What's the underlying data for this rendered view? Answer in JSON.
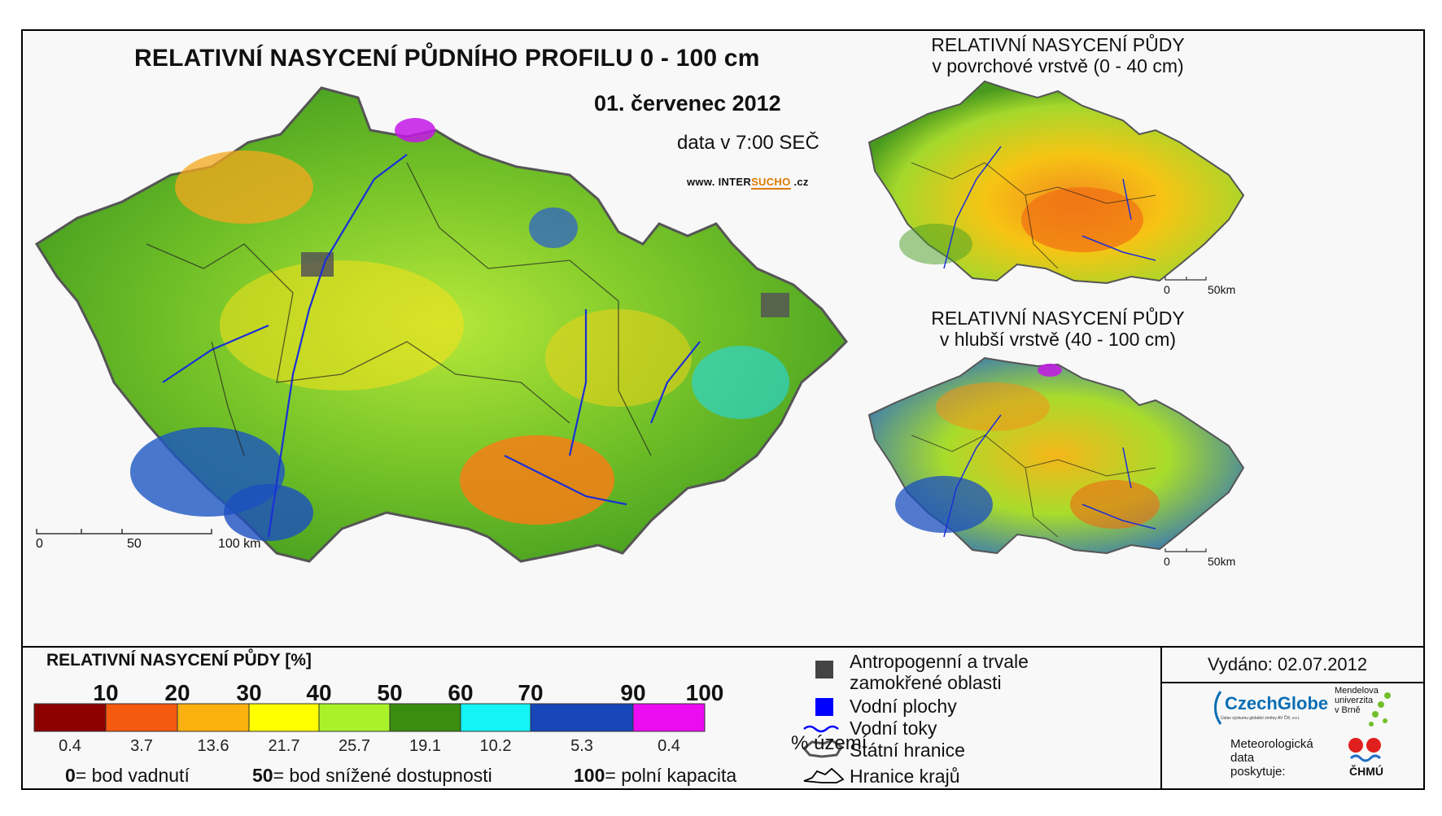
{
  "main_map": {
    "title": "RELATIVNÍ NASYCENÍ PŮDNÍHO PROFILU 0 - 100 cm",
    "date": "01. červenec 2012",
    "data_time": "data v 7:00 SEČ",
    "website_prefix": "www. INTER",
    "website_highlight": "SUCHO",
    "website_suffix": " .cz",
    "scale_labels": [
      "0",
      "50",
      "100 km"
    ]
  },
  "surface_map": {
    "title_line1": "RELATIVNÍ NASYCENÍ PŮDY",
    "title_line2": "v povrchové vrstvě (0 - 40 cm)",
    "scale_labels": [
      "0",
      "50km"
    ]
  },
  "deep_map": {
    "title_line1": "RELATIVNÍ NASYCENÍ PŮDY",
    "title_line2": "v hlubší vrstvě (40 - 100 cm)",
    "scale_labels": [
      "0",
      "50km"
    ]
  },
  "legend": {
    "title": "RELATIVNÍ NASYCENÍ PŮDY [%]",
    "tick_labels": [
      "10",
      "20",
      "30",
      "40",
      "50",
      "60",
      "70",
      "90",
      "100"
    ],
    "classes": [
      {
        "color": "#8c0000",
        "percent": "0.4"
      },
      {
        "color": "#f45a10",
        "percent": "3.7"
      },
      {
        "color": "#fdb10e",
        "percent": "13.6"
      },
      {
        "color": "#ffff00",
        "percent": "21.7"
      },
      {
        "color": "#a9f22a",
        "percent": "25.7"
      },
      {
        "color": "#3b8d0f",
        "percent": "19.1"
      },
      {
        "color": "#14f3f6",
        "percent": "10.2"
      },
      {
        "color": "#1646b8",
        "percent": "5.3"
      },
      {
        "color": "#ec0cf2",
        "percent": "0.4"
      }
    ],
    "percent_unit": "% území",
    "definitions": [
      {
        "value": "0",
        "text": "= bod vadnutí"
      },
      {
        "value": "50",
        "text": "= bod snížené dostupnosti"
      },
      {
        "value": "100",
        "text": "= polní kapacita"
      }
    ]
  },
  "map_legend": {
    "items": [
      {
        "icon": "urban-square-icon",
        "color": "#444444",
        "label_line1": "Antropogenní a trvale",
        "label_line2": "zamokřené oblasti"
      },
      {
        "icon": "water-square-icon",
        "color": "#0000ff",
        "label_line1": "Vodní plochy"
      },
      {
        "icon": "river-line-icon",
        "color": "#0000ff",
        "label_line1": "Vodní toky"
      },
      {
        "icon": "state-border-icon",
        "color": "#555555",
        "label_line1": "Státní hranice"
      },
      {
        "icon": "region-border-icon",
        "color": "#000000",
        "label_line1": "Hranice krajů"
      }
    ]
  },
  "credits": {
    "issued": "Vydáno: 02.07.2012",
    "czechglobe": "CzechGlobe",
    "czechglobe_sub": "Ústav výzkumu globální změny AV ČR, v.v.i.",
    "mendel_line1": "Mendelova",
    "mendel_line2": "univerzita",
    "mendel_line3": "v Brně",
    "meteo_line1": "Meteorologická",
    "meteo_line2": "data",
    "meteo_line3": "poskytuje:",
    "chmu": "ČHMÚ"
  }
}
